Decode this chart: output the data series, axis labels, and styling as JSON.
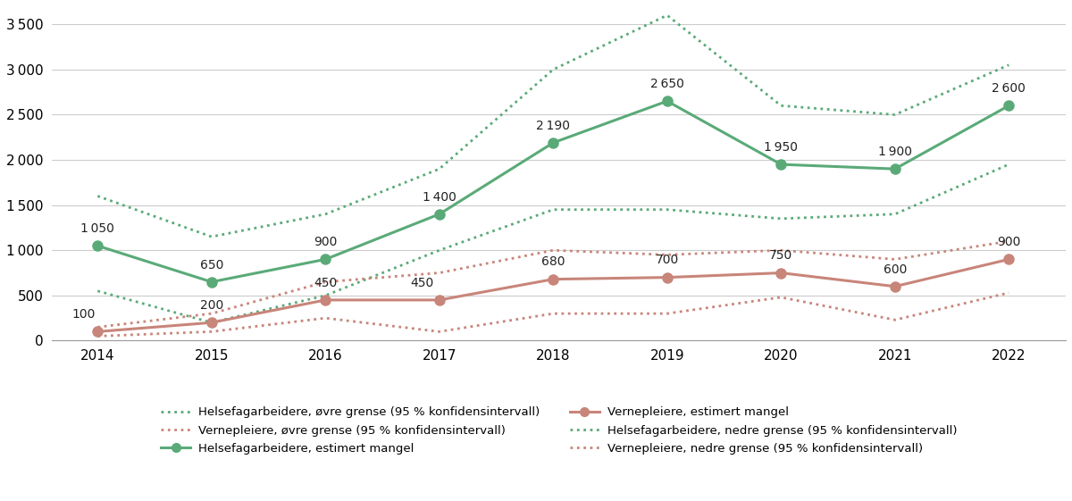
{
  "years": [
    2014,
    2015,
    2016,
    2017,
    2018,
    2019,
    2020,
    2021,
    2022
  ],
  "helse_estimert": [
    1050,
    650,
    900,
    1400,
    2190,
    2650,
    1950,
    1900,
    2600
  ],
  "helse_ovre": [
    1600,
    1150,
    1400,
    1900,
    3000,
    3600,
    2600,
    2500,
    3050
  ],
  "helse_nedre": [
    550,
    200,
    500,
    1000,
    1450,
    1450,
    1350,
    1400,
    1950
  ],
  "vern_estimert": [
    100,
    200,
    450,
    450,
    680,
    700,
    750,
    600,
    900
  ],
  "vern_ovre": [
    150,
    300,
    650,
    750,
    1000,
    950,
    1000,
    900,
    1100
  ],
  "vern_nedre": [
    50,
    100,
    250,
    100,
    300,
    300,
    480,
    230,
    530
  ],
  "color_green": "#5aaa78",
  "color_rose": "#c8857a",
  "ylim": [
    0,
    3700
  ],
  "yticks": [
    0,
    500,
    1000,
    1500,
    2000,
    2500,
    3000,
    3500
  ],
  "ytick_labels": [
    "0",
    "500",
    "1 000",
    "1 500",
    "2 000",
    "2 500",
    "3 000",
    "3 500"
  ],
  "helse_labels": [
    "1 050",
    "650",
    "900",
    "1 400",
    "2 190",
    "2 650",
    "1 950",
    "1 900",
    "2 600"
  ],
  "vern_labels": [
    "100",
    "200",
    "450",
    "450",
    "680",
    "700",
    "750",
    "600",
    "900"
  ],
  "helse_label_ha": [
    "center",
    "center",
    "center",
    "center",
    "center",
    "center",
    "center",
    "center",
    "center"
  ],
  "helse_label_dy": [
    120,
    120,
    120,
    120,
    120,
    120,
    120,
    120,
    120
  ],
  "vern_label_dx": [
    -0.12,
    0,
    0,
    -0.15,
    0,
    0,
    0,
    0,
    0
  ],
  "vern_label_dy": [
    120,
    120,
    120,
    120,
    120,
    120,
    120,
    120,
    120
  ],
  "legend_labels": [
    "Helsefagarbeidere, øvre grense (95 % konfidensintervall)",
    "Vernepleiere, øvre grense (95 % konfidensintervall)",
    "Helsefagarbeidere, estimert mangel",
    "Vernepleiere, estimert mangel",
    "Helsefagarbeidere, nedre grense (95 % konfidensintervall)",
    "Vernepleiere, nedre grense (95 % konfidensintervall)"
  ]
}
